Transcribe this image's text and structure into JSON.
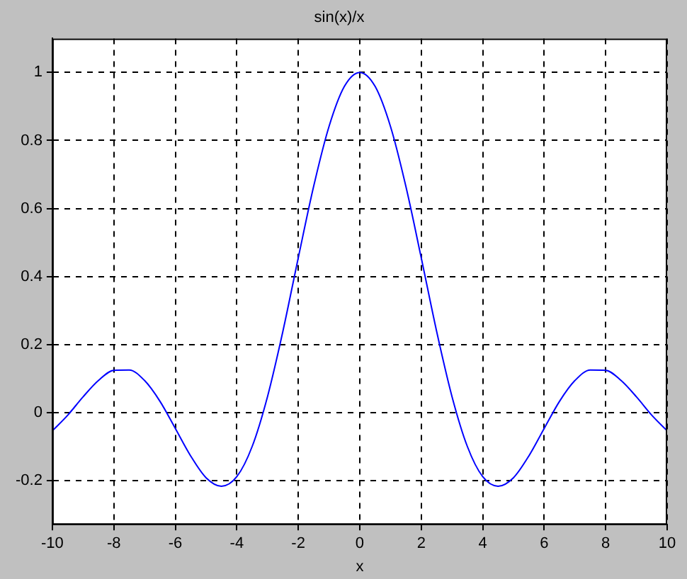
{
  "chart_data": {
    "type": "line",
    "title": "sin(x)/x",
    "xlabel": "x",
    "x": [
      -10,
      -9.5,
      -9,
      -8.5,
      -8,
      -7.5,
      -7,
      -6.5,
      -6,
      -5.5,
      -5,
      -4.5,
      -4,
      -3.5,
      -3,
      -2.5,
      -2,
      -1.5,
      -1,
      -0.5,
      0,
      0.5,
      1,
      1.5,
      2,
      2.5,
      3,
      3.5,
      4,
      4.5,
      5,
      5.5,
      6,
      6.5,
      7,
      7.5,
      8,
      8.5,
      9,
      9.5,
      10
    ],
    "series": [
      {
        "color": "#0000ff",
        "values": [
          -0.054,
          -0.008,
          0.046,
          0.094,
          0.124,
          0.125,
          0.094,
          0.033,
          -0.047,
          -0.128,
          -0.192,
          -0.217,
          -0.189,
          -0.1,
          0.047,
          0.239,
          0.455,
          0.665,
          0.841,
          0.959,
          1,
          0.959,
          0.841,
          0.665,
          0.455,
          0.239,
          0.047,
          -0.1,
          -0.189,
          -0.217,
          -0.192,
          -0.128,
          -0.047,
          0.033,
          0.094,
          0.125,
          0.124,
          0.094,
          0.046,
          -0.008,
          -0.054
        ]
      }
    ],
    "xlim": [
      -10,
      10
    ],
    "xticks": [
      -10,
      -8,
      -6,
      -4,
      -2,
      0,
      2,
      4,
      6,
      8,
      10
    ],
    "ylim": [
      -0.33,
      1.1
    ],
    "yticks": [
      -0.2,
      0,
      0.2,
      0.4,
      0.6,
      0.8,
      1
    ],
    "grid": true,
    "legend": false,
    "marker": "none",
    "line_style": "solid"
  }
}
